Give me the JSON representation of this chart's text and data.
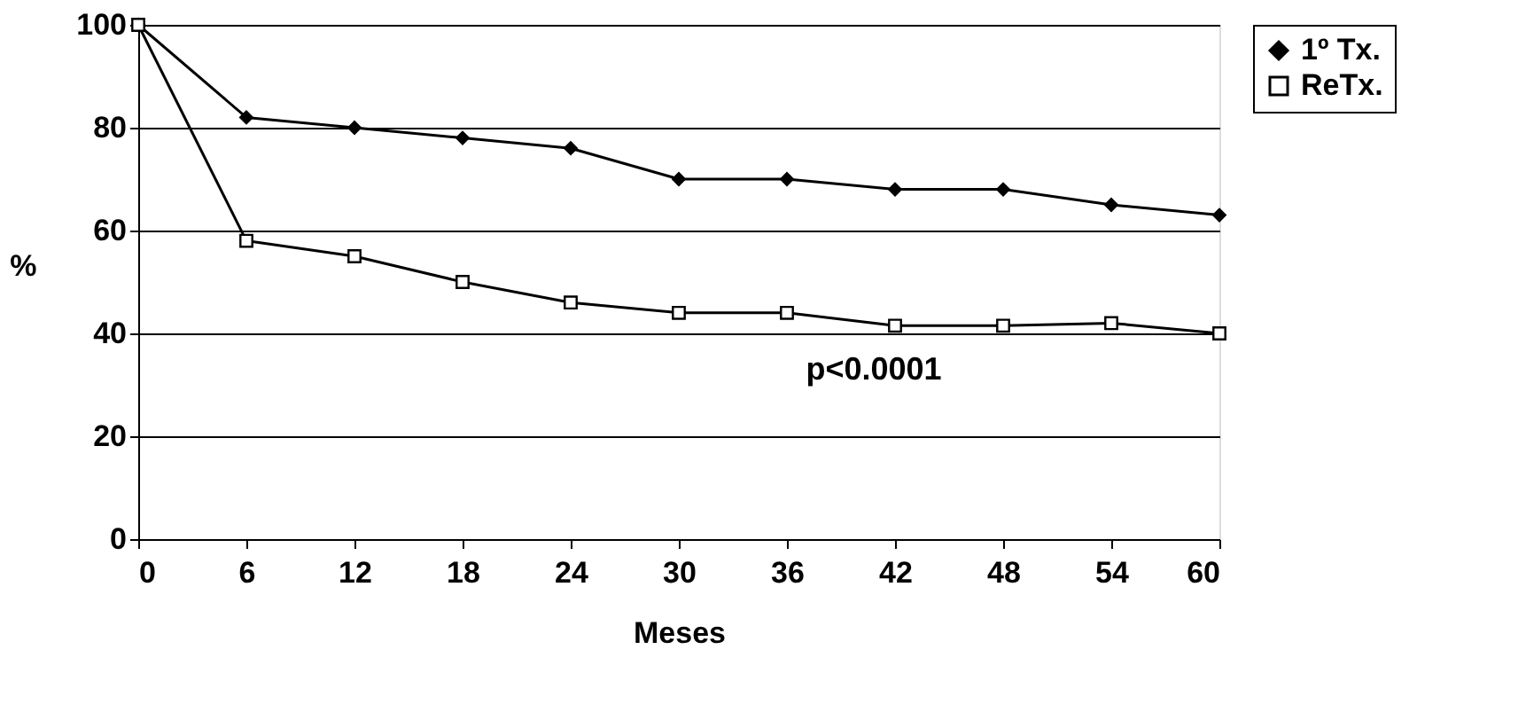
{
  "chart_data": {
    "type": "line",
    "xlabel": "Meses",
    "ylabel": "%",
    "x": [
      0,
      6,
      12,
      18,
      24,
      30,
      36,
      42,
      48,
      54,
      60
    ],
    "series": [
      {
        "name": "1º Tx.",
        "color": "#000000",
        "marker": "diamond",
        "values": [
          100,
          82,
          80,
          78,
          76,
          70,
          70,
          68,
          68,
          65,
          63
        ]
      },
      {
        "name": "ReTx.",
        "color": "#000000",
        "marker": "square",
        "values": [
          100,
          58,
          55,
          50,
          46,
          44,
          44,
          41.5,
          41.5,
          42,
          40
        ]
      }
    ],
    "xlim": [
      0,
      60
    ],
    "xticks": [
      0,
      6,
      12,
      18,
      24,
      30,
      36,
      42,
      48,
      54,
      60
    ],
    "ylim": [
      0,
      100
    ],
    "yticks": [
      0,
      20,
      40,
      60,
      80,
      100
    ],
    "grid": "y",
    "legend": "right",
    "line_style": "solid",
    "annotations": [
      "p<0.0001"
    ]
  }
}
